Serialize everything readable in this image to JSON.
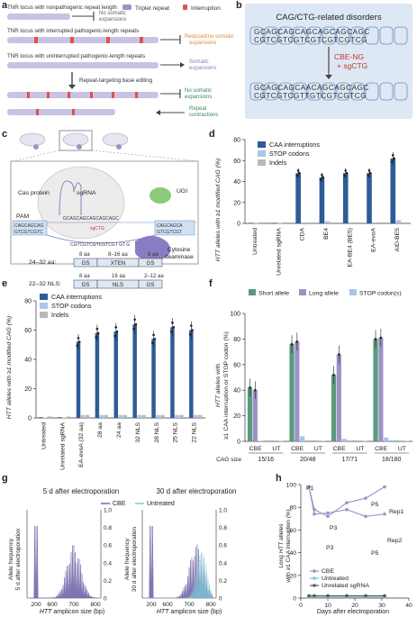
{
  "panels": {
    "a": {
      "letter": "a",
      "legend": {
        "triplet": "Triplet repeat",
        "interruption": "Interruption"
      },
      "rows": [
        {
          "label": "TNR locus with nonpathogenic repeat length",
          "outcome": "No somatic expansions"
        },
        {
          "label": "TNR locus with interrupted pathogenic-length repeats",
          "outcome": "Reduced/no somatic expansions"
        },
        {
          "label": "TNR locus with uninterrupted pathogenic-length repeats",
          "outcome": "Somatic expansions"
        }
      ],
      "editing": "Repeat-targeting base editing",
      "outcomes_after": [
        "No somatic expansions",
        "Repeat contractions"
      ],
      "colors": {
        "repeat": "#9d92c6",
        "interruption": "#e0524a",
        "reduced": "#e08a3a",
        "expansion": "#8a7cc0"
      }
    },
    "b": {
      "letter": "b",
      "title": "CAG/CTG-related disorders",
      "top_seq": "GCAGCAGCAGCAGCAGCAGC",
      "bot_seq": "CGTCGTCGTCGTCGTCGTCG",
      "editor": "CBE-NG",
      "guide": "+ sgCTG",
      "top_seq2": "GCAGCAGCAACAGCAGCAGC",
      "bot_seq2": "CGTCGTCGTTGTCGTCGTCG"
    },
    "c": {
      "letter": "c",
      "labels": {
        "cas": "Cas protein",
        "sgrna": "sgRNA",
        "ugi": "UGI",
        "pam": "PAM",
        "deaminase": "Cytosine deaminase"
      },
      "seqs": {
        "left_top": "CAGCAGCAG",
        "left_bot": "GTCGTCGTC",
        "mid_top": "GCAGCAGCAGCAGCAGC",
        "right_top": "CAGCAGCA",
        "right_bot": "GTCGTCGT",
        "bottom": "CGTCGTCGTCGTCGT GT G",
        "red_label": "sgCTG"
      }
    },
    "d": {
      "letter": "d",
      "ylabel": "HTT alleles with ≥1 modified CAG (%)",
      "legend": [
        "CAA interruptions",
        "STOP codons",
        "Indels"
      ]
    },
    "e": {
      "letter": "e",
      "ylabel": "HTT alleles with ≥1 modified CAG (%)",
      "legend": [
        "CAA interruptions",
        "STOP codons",
        "Indels"
      ],
      "schema": {
        "row1": {
          "label": "24–32 aa:",
          "parts": [
            "GS",
            "XTEN",
            "GS"
          ],
          "tops": [
            "8 aa",
            "8–16 aa",
            "8 aa"
          ]
        },
        "row2": {
          "label": "22–32 NLS:",
          "parts": [
            "GS",
            "NLS",
            "GS"
          ],
          "tops": [
            "8 aa",
            "16 aa",
            "2–12 aa"
          ]
        }
      }
    },
    "f": {
      "letter": "f",
      "ylabel": "HTT alleles with ≥1 CAA interruption or STOP codon (%)",
      "legend": [
        "Short allele",
        "Long allele",
        "STOP codon(s)"
      ],
      "size_label": "CAG size"
    },
    "g": {
      "letter": "g",
      "left_title": "5 d after electroporation",
      "right_title": "30 d after electroporation",
      "legend": [
        "CBE",
        "Untreated"
      ],
      "left_ylabel": "Allele frequency 5 d after electroporation",
      "right_ylabel": "Allele frequency 30 d after electroporation",
      "xlabel": "HTT amplicon size (bp)",
      "xticks": [
        "200",
        "600",
        "700",
        "800"
      ],
      "yticks": [
        "0",
        "0.2",
        "0.4",
        "0.6",
        "0.8",
        "1.0"
      ]
    },
    "h": {
      "letter": "h",
      "ylabel": "Long HTT alleles with ≥1 CAA interruption (%)",
      "xlabel": "Days after electroporation",
      "legend": [
        "CBE",
        "Untreated",
        "Unrelated sgRNA"
      ],
      "annotations": [
        "P1",
        "P3",
        "P3",
        "P5",
        "P5",
        "Rep1",
        "Rep2"
      ],
      "yticks": [
        "0",
        "20",
        "40",
        "60",
        "80",
        "100"
      ],
      "xticks": [
        "0",
        "10",
        "20",
        "30",
        "40"
      ]
    }
  },
  "chart_data": [
    {
      "panel": "d",
      "type": "bar",
      "categories": [
        "Untreated",
        "Unrelated sgRNA",
        "CDA",
        "BE4",
        "EA-BE4 (BE5)",
        "EA-evoA",
        "AID-BE5"
      ],
      "series": [
        {
          "name": "CAA interruptions",
          "values": [
            0.5,
            0.5,
            48,
            44,
            48,
            48,
            62
          ]
        },
        {
          "name": "STOP codons",
          "values": [
            0.3,
            0.3,
            1,
            2,
            1,
            1,
            3
          ]
        },
        {
          "name": "Indels",
          "values": [
            1,
            1,
            1,
            1,
            1,
            1,
            1
          ]
        }
      ],
      "ylim": [
        0,
        80
      ],
      "yticks": [
        0,
        20,
        40,
        60,
        80
      ],
      "colors": [
        "#2e5c96",
        "#a8c6e8",
        "#b9b9b9"
      ]
    },
    {
      "panel": "e",
      "type": "bar",
      "categories": [
        "Untreated",
        "Unrelated sgRNA",
        "EA-evoA (32 aa)",
        "28 aa",
        "24 aa",
        "32 NLS",
        "28 NLS",
        "25 NLS",
        "22 NLS"
      ],
      "series": [
        {
          "name": "CAA interruptions",
          "values": [
            0.5,
            0.5,
            52,
            58,
            59,
            64,
            54,
            62,
            60
          ]
        },
        {
          "name": "STOP codons",
          "values": [
            0.3,
            0.3,
            2,
            2,
            2,
            2,
            2,
            2,
            2
          ]
        },
        {
          "name": "Indels",
          "values": [
            1,
            1,
            2,
            2,
            2,
            2,
            2,
            2,
            2
          ]
        }
      ],
      "ylim": [
        0,
        80
      ],
      "yticks": [
        0,
        20,
        40,
        60,
        80
      ],
      "colors": [
        "#2e5c96",
        "#a8c6e8",
        "#b9b9b9"
      ]
    },
    {
      "panel": "f",
      "type": "bar",
      "groups": [
        "15/16",
        "20/48",
        "17/71",
        "18/180"
      ],
      "subcategories": [
        "CBE",
        "UT"
      ],
      "series": [
        {
          "name": "Short allele",
          "values": [
            42,
            0.5,
            76,
            0.5,
            52,
            0.5,
            80,
            0.5
          ]
        },
        {
          "name": "Long allele",
          "values": [
            40,
            0.5,
            78,
            0.5,
            68,
            0.5,
            81,
            0.5
          ]
        },
        {
          "name": "STOP codon(s)",
          "values": [
            0.5,
            0.5,
            4,
            0.5,
            2,
            0.5,
            3,
            0.5
          ]
        }
      ],
      "ylim": [
        0,
        100
      ],
      "yticks": [
        0,
        20,
        40,
        60,
        80,
        100
      ],
      "colors": [
        "#5a9a7c",
        "#9d92c6",
        "#a8c6e8"
      ]
    },
    {
      "panel": "h",
      "type": "line",
      "series": [
        {
          "name": "CBE",
          "x": [
            3,
            5,
            10,
            17,
            24,
            31
          ],
          "y": [
            98,
            74,
            75,
            78,
            72,
            74
          ]
        },
        {
          "name": "CBE",
          "x": [
            3,
            5,
            10,
            17,
            24,
            31
          ],
          "y": [
            98,
            78,
            72,
            84,
            88,
            98
          ]
        },
        {
          "name": "Untreated",
          "x": [
            3,
            5,
            10,
            17,
            24,
            31
          ],
          "y": [
            1,
            1,
            1,
            1,
            1,
            1
          ]
        },
        {
          "name": "Unrelated sgRNA",
          "x": [
            3,
            5,
            10,
            17,
            24,
            31
          ],
          "y": [
            2,
            2,
            2,
            2,
            2,
            2
          ]
        }
      ],
      "xlim": [
        0,
        40
      ],
      "ylim": [
        0,
        100
      ],
      "colors": [
        "#9d92c6",
        "#7ec3d6",
        "#5a5a5a"
      ]
    }
  ]
}
